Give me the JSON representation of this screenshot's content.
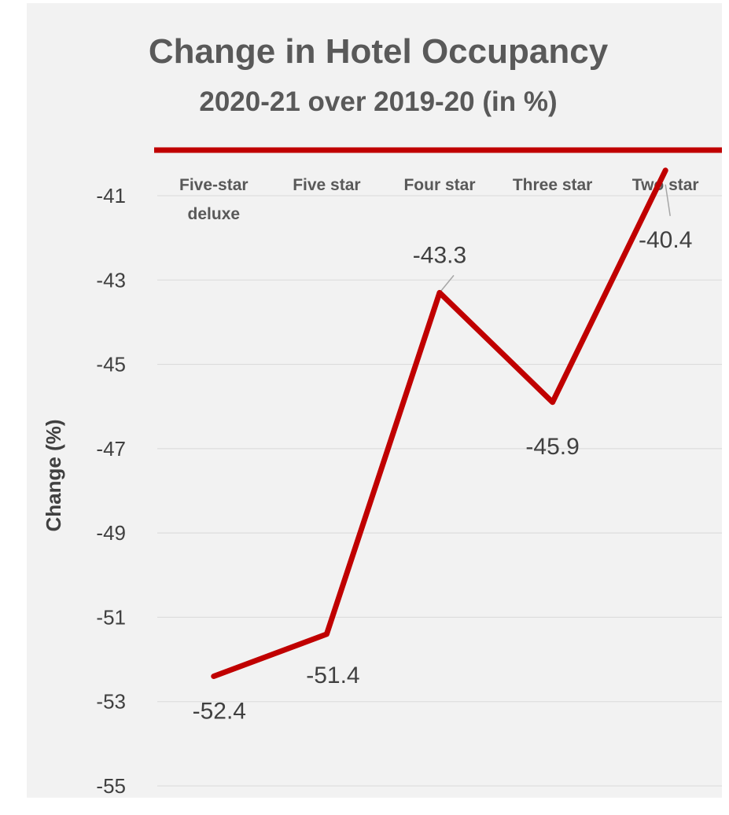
{
  "chart_data": {
    "type": "line",
    "title": "Change in Hotel Occupancy",
    "subtitle": "2020-21 over 2019-20 (in %)",
    "xlabel": "",
    "ylabel": "Change (%)",
    "categories": [
      "Five-star deluxe",
      "Five star",
      "Four star",
      "Three star",
      "Two star"
    ],
    "category_lines": [
      [
        "Five-star",
        "deluxe"
      ],
      [
        "Five star"
      ],
      [
        "Four star"
      ],
      [
        "Three star"
      ],
      [
        "Two star"
      ]
    ],
    "series": [
      {
        "values": [
          -52.4,
          -51.4,
          -43.3,
          -45.9,
          -40.4
        ]
      }
    ],
    "data_labels": [
      "-52.4",
      "-51.4",
      "-43.3",
      "-45.9",
      "-40.4"
    ],
    "yticks": [
      -41,
      -43,
      -45,
      -47,
      -49,
      -51,
      -53,
      -55
    ],
    "ylim": [
      -55,
      -39.2
    ],
    "x_axis_position": "top",
    "grid": true,
    "line_color": "#c00000",
    "gridline_color": "#d9d9d9"
  }
}
